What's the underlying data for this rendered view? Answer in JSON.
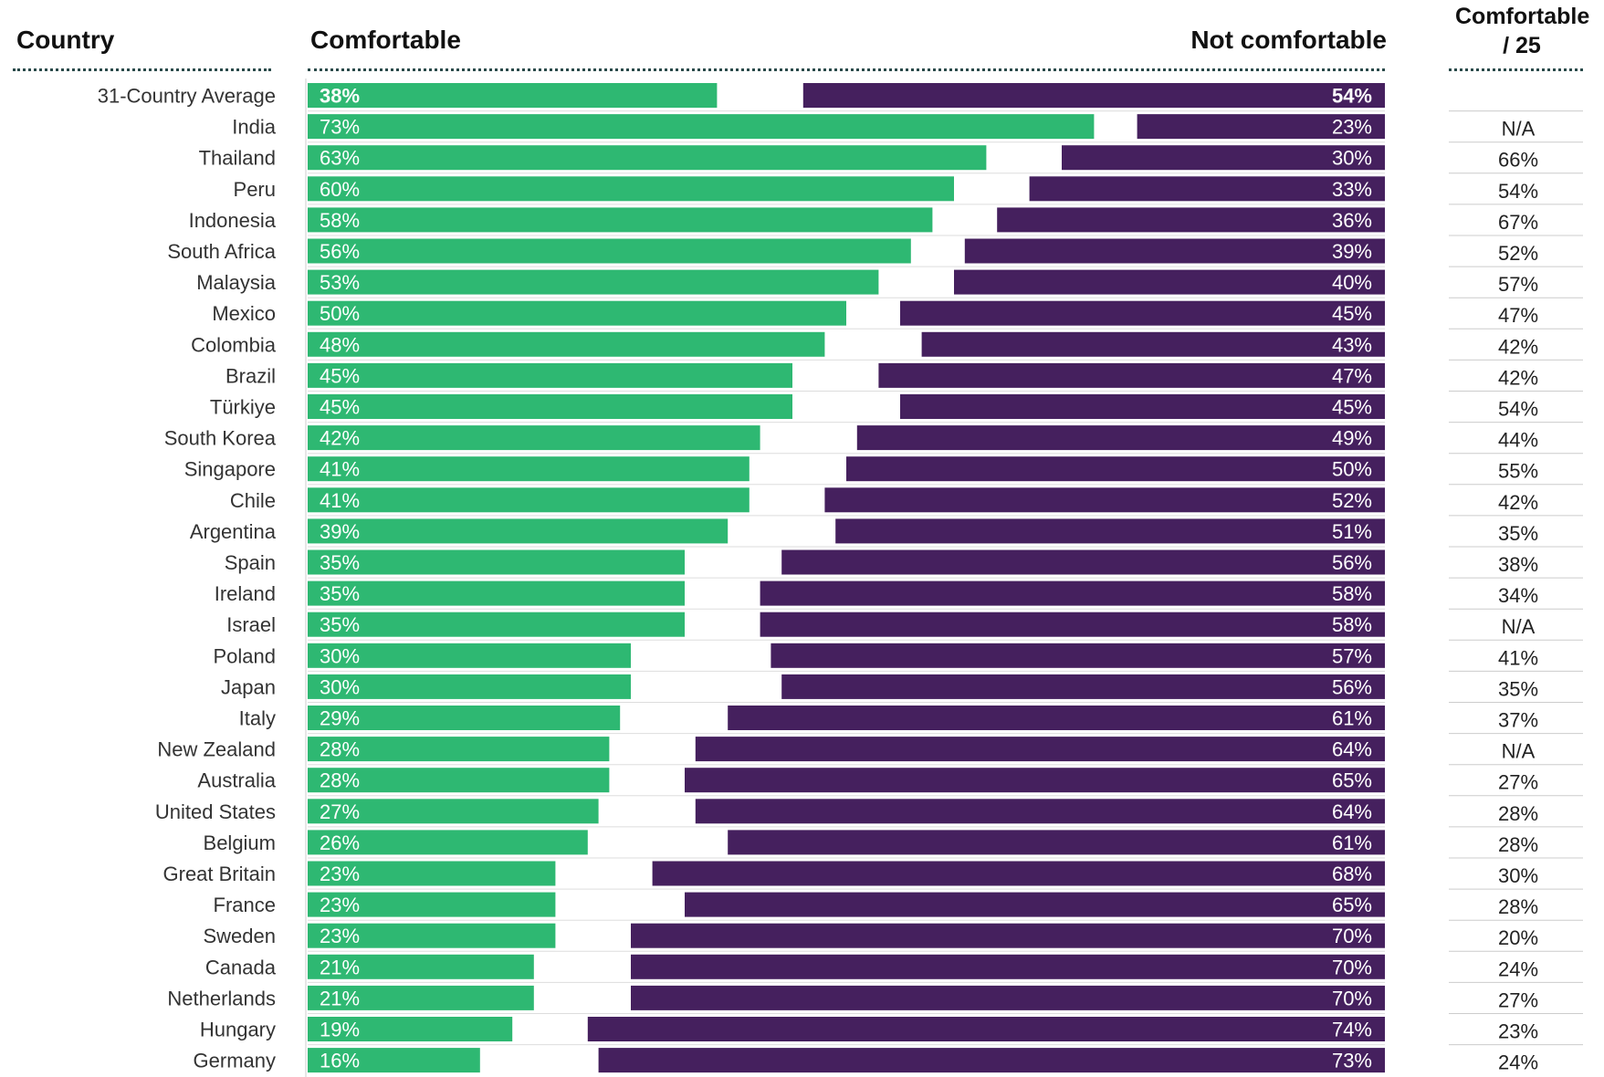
{
  "chart_data": {
    "type": "bar",
    "stacked": "diverging",
    "headers": {
      "country": "Country",
      "comfortable": "Comfortable",
      "not_comfortable": "Not comfortable",
      "comfortable_25_line1": "Comfortable",
      "comfortable_25_line2": "/ 25"
    },
    "colors": {
      "comfortable": "#2eb872",
      "not_comfortable": "#45205e"
    },
    "xlim": [
      0,
      100
    ],
    "categories": [
      "31-Country Average",
      "India",
      "Thailand",
      "Peru",
      "Indonesia",
      "South Africa",
      "Malaysia",
      "Mexico",
      "Colombia",
      "Brazil",
      "Türkiye",
      "South Korea",
      "Singapore",
      "Chile",
      "Argentina",
      "Spain",
      "Ireland",
      "Israel",
      "Poland",
      "Japan",
      "Italy",
      "New Zealand",
      "Australia",
      "United States",
      "Belgium",
      "Great Britain",
      "France",
      "Sweden",
      "Canada",
      "Netherlands",
      "Hungary",
      "Germany"
    ],
    "series": [
      {
        "name": "Comfortable",
        "values": [
          38,
          73,
          63,
          60,
          58,
          56,
          53,
          50,
          48,
          45,
          45,
          42,
          41,
          41,
          39,
          35,
          35,
          35,
          30,
          30,
          29,
          28,
          28,
          27,
          26,
          23,
          23,
          23,
          21,
          21,
          19,
          16
        ]
      },
      {
        "name": "Not comfortable",
        "values": [
          54,
          23,
          30,
          33,
          36,
          39,
          40,
          45,
          43,
          47,
          45,
          49,
          50,
          52,
          51,
          56,
          58,
          58,
          57,
          56,
          61,
          64,
          65,
          64,
          61,
          68,
          65,
          70,
          70,
          70,
          74,
          73
        ]
      }
    ],
    "comfortable_25": [
      "",
      "N/A",
      "66%",
      "54%",
      "67%",
      "52%",
      "57%",
      "47%",
      "42%",
      "42%",
      "54%",
      "44%",
      "55%",
      "42%",
      "35%",
      "38%",
      "34%",
      "N/A",
      "41%",
      "35%",
      "37%",
      "N/A",
      "27%",
      "28%",
      "28%",
      "30%",
      "28%",
      "20%",
      "24%",
      "27%",
      "23%",
      "24%"
    ]
  }
}
